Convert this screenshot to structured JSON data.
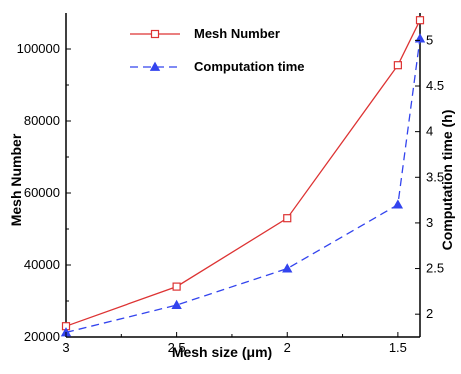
{
  "chart_data": {
    "type": "line",
    "title": "",
    "xlabel": "Mesh size (μm)",
    "ylabel": "Mesh Number",
    "y2label": "Computation time (h)",
    "x": [
      3,
      2.5,
      2,
      1.5,
      1.4
    ],
    "xlim": [
      3,
      1.4
    ],
    "x_ticks": [
      "3",
      "2.5",
      "2",
      "1.5"
    ],
    "x_tick_values": [
      3,
      2.5,
      2,
      1.5
    ],
    "ylim": [
      20000,
      110000
    ],
    "y_ticks": [
      "20000",
      "40000",
      "60000",
      "80000",
      "100000"
    ],
    "y_tick_values": [
      20000,
      40000,
      60000,
      80000,
      100000
    ],
    "y2lim": [
      1.75,
      5.3
    ],
    "y2_ticks": [
      "2",
      "2.5",
      "3",
      "3.5",
      "4",
      "4.5",
      "5"
    ],
    "y2_tick_values": [
      2,
      2.5,
      3,
      3.5,
      4,
      4.5,
      5
    ],
    "series": [
      {
        "name": "Mesh Number",
        "axis": "left",
        "values": [
          23000,
          34000,
          53000,
          95500,
          108000
        ],
        "color": "#dd3333",
        "line": "solid",
        "marker": "open-square"
      },
      {
        "name": "Computation time",
        "axis": "right",
        "values": [
          1.8,
          2.1,
          2.5,
          3.2,
          5.02
        ],
        "color": "#3344ee",
        "line": "dashed",
        "marker": "filled-triangle"
      }
    ],
    "grid": false,
    "legend_position": "top-center"
  }
}
